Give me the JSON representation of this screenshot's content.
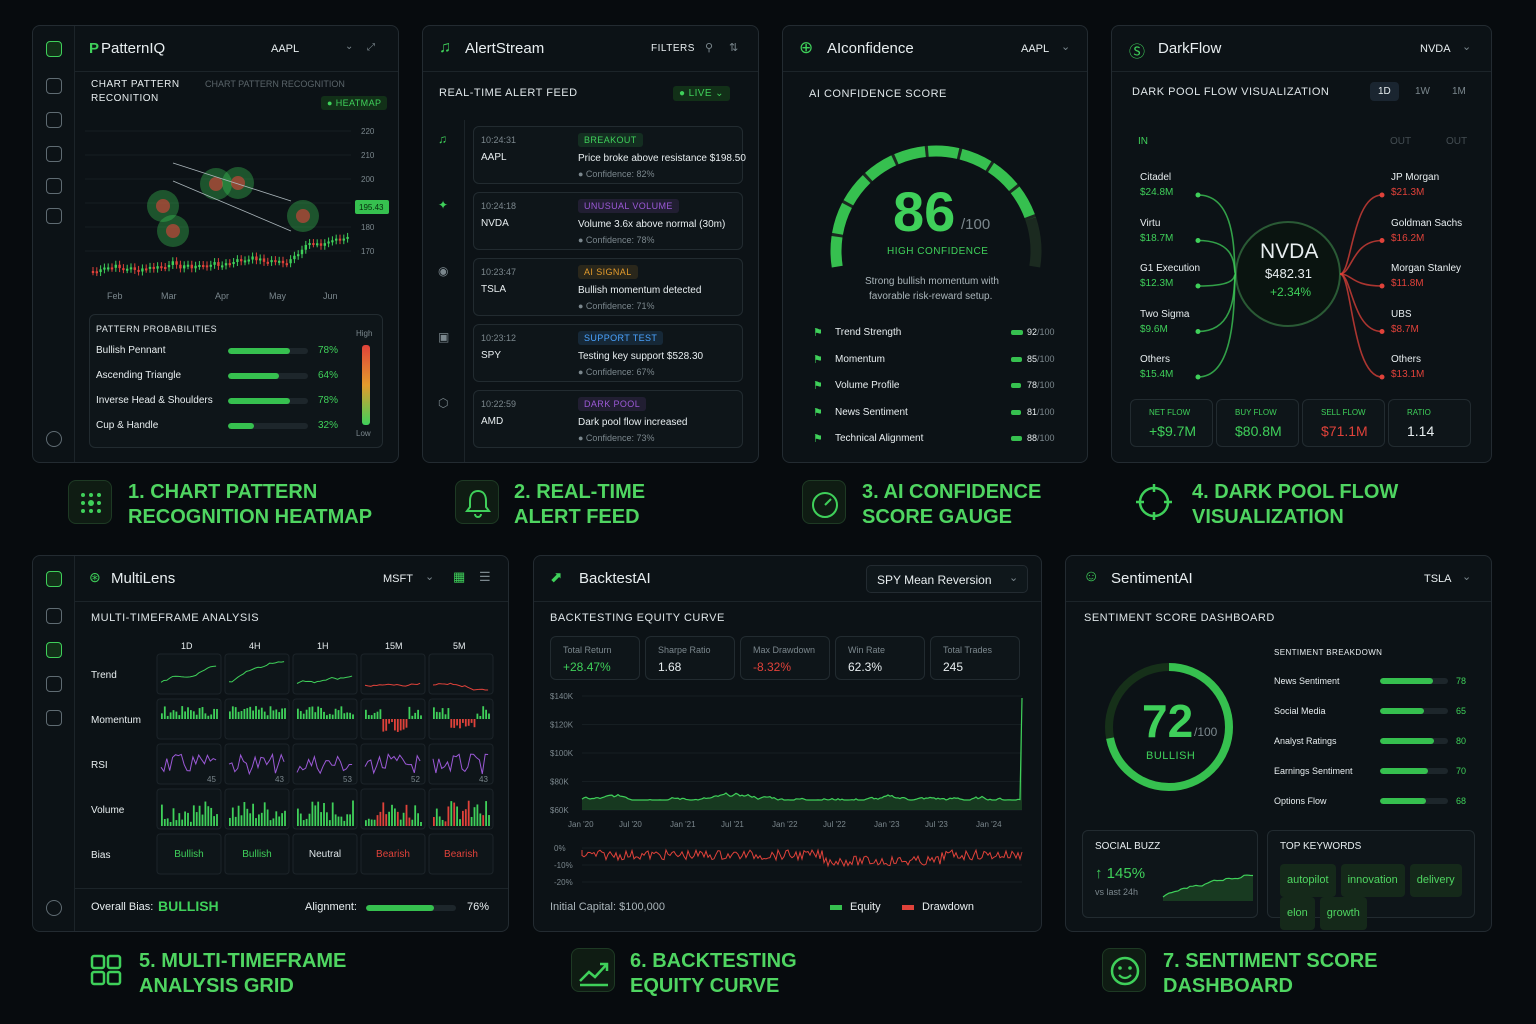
{
  "colors": {
    "accent": "#3fd05a",
    "danger": "#e0423a",
    "panel": "#0c1216",
    "bg": "#070b0e",
    "purple": "#9b59d6",
    "blue": "#4aa3ff",
    "orange": "#e39b2c"
  },
  "pattern": {
    "app": "PatternIQ",
    "ticker": "AAPL",
    "title_line1": "CHART PATTERN",
    "title_line2": "RECONITION",
    "title_ghost": "CHART PATTERN RECOGNITION",
    "heatmap_badge": "HEATMAP",
    "y_ticks": [
      "220",
      "210",
      "200",
      "190",
      "180",
      "170"
    ],
    "price_tag": "195.43",
    "x_ticks": [
      "Feb",
      "Mar",
      "Apr",
      "May",
      "Jun"
    ],
    "prob_title": "PATTERN PROBABILITIES",
    "scale_high": "High",
    "scale_low": "Low",
    "probs": [
      {
        "name": "Bullish Pennant",
        "value": 78,
        "label": "78%"
      },
      {
        "name": "Ascending Triangle",
        "value": 64,
        "label": "64%"
      },
      {
        "name": "Inverse Head & Shoulders",
        "value": 78,
        "label": "78%"
      },
      {
        "name": "Cup & Handle",
        "value": 32,
        "label": "32%"
      }
    ]
  },
  "alert": {
    "app": "AlertStream",
    "filters": "FILTERS",
    "title": "REAL-TIME ALERT FEED",
    "live": "LIVE",
    "items": [
      {
        "time": "10:24:31",
        "sym": "AAPL",
        "badge": "BREAKOUT",
        "badge_color": "#3fd05a",
        "msg": "Price broke above resistance $198.50",
        "conf": "Confidence: 82%"
      },
      {
        "time": "10:24:18",
        "sym": "NVDA",
        "badge": "UNUSUAL VOLUME",
        "badge_color": "#9b59d6",
        "msg": "Volume 3.6x above normal (30m)",
        "conf": "Confidence: 78%"
      },
      {
        "time": "10:23:47",
        "sym": "TSLA",
        "badge": "AI SIGNAL",
        "badge_color": "#e39b2c",
        "msg": "Bullish momentum detected",
        "conf": "Confidence: 71%"
      },
      {
        "time": "10:23:12",
        "sym": "SPY",
        "badge": "SUPPORT TEST",
        "badge_color": "#4aa3ff",
        "msg": "Testing key support $528.30",
        "conf": "Confidence: 67%"
      },
      {
        "time": "10:22:59",
        "sym": "AMD",
        "badge": "DARK POOL",
        "badge_color": "#9b59d6",
        "msg": "Dark pool flow increased",
        "conf": "Confidence: 73%"
      }
    ]
  },
  "confidence": {
    "app": "AIconfidence",
    "ticker": "AAPL",
    "title": "AI CONFIDENCE SCORE",
    "score": "86",
    "score_value": 86,
    "max": "/100",
    "level": "HIGH CONFIDENCE",
    "desc1": "Strong bullish momentum with",
    "desc2": "favorable risk-reward setup.",
    "factors": [
      {
        "name": "Trend Strength",
        "value": 92,
        "label": "92"
      },
      {
        "name": "Momentum",
        "value": 85,
        "label": "85"
      },
      {
        "name": "Volume Profile",
        "value": 78,
        "label": "78"
      },
      {
        "name": "News Sentiment",
        "value": 81,
        "label": "81"
      },
      {
        "name": "Technical Alignment",
        "value": 88,
        "label": "88"
      }
    ],
    "factor_max": "/100"
  },
  "darkflow": {
    "app": "DarkFlow",
    "ticker": "NVDA",
    "title": "DARK POOL FLOW VISUALIZATION",
    "tabs": [
      "1D",
      "1W",
      "1M"
    ],
    "in_label": "IN",
    "out_label1": "OUT",
    "out_label2": "OUT",
    "center": {
      "sym": "NVDA",
      "price": "$482.31",
      "change": "+2.34%"
    },
    "inflows": [
      {
        "name": "Citadel",
        "value": "$24.8M"
      },
      {
        "name": "Virtu",
        "value": "$18.7M"
      },
      {
        "name": "G1 Execution",
        "value": "$12.3M"
      },
      {
        "name": "Two Sigma",
        "value": "$9.6M"
      },
      {
        "name": "Others",
        "value": "$15.4M"
      }
    ],
    "outflows": [
      {
        "name": "JP Morgan",
        "value": "$21.3M"
      },
      {
        "name": "Goldman Sachs",
        "value": "$16.2M"
      },
      {
        "name": "Morgan Stanley",
        "value": "$11.8M"
      },
      {
        "name": "UBS",
        "value": "$8.7M"
      },
      {
        "name": "Others",
        "value": "$13.1M"
      }
    ],
    "stats": [
      {
        "label": "NET FLOW",
        "value": "+$9.7M"
      },
      {
        "label": "BUY FLOW",
        "value": "$80.8M"
      },
      {
        "label": "SELL FLOW",
        "value": "$71.1M"
      },
      {
        "label": "RATIO",
        "value": "1.14"
      }
    ]
  },
  "multilens": {
    "app": "MultiLens",
    "ticker": "MSFT",
    "title": "MULTI-TIMEFRAME ANALYSIS",
    "timeframes": [
      "1D",
      "4H",
      "1H",
      "15M",
      "5M"
    ],
    "rows": [
      "Trend",
      "Momentum",
      "RSI",
      "Volume",
      "Bias"
    ],
    "rsi": [
      "45",
      "43",
      "53",
      "52",
      "43"
    ],
    "bias": [
      "Bullish",
      "Bullish",
      "Neutral",
      "Bearish",
      "Bearish"
    ],
    "overall_label": "Overall Bias:",
    "overall": "BULLISH",
    "alignment_label": "Alignment:",
    "alignment": "76%",
    "alignment_value": 76
  },
  "backtest": {
    "app": "BacktestAI",
    "strategy": "SPY Mean Reversion",
    "title": "BACKTESTING EQUITY CURVE",
    "stats": [
      {
        "label": "Total Return",
        "value": "+28.47%"
      },
      {
        "label": "Sharpe Ratio",
        "value": "1.68"
      },
      {
        "label": "Max Drawdown",
        "value": "-8.32%"
      },
      {
        "label": "Win Rate",
        "value": "62.3%"
      },
      {
        "label": "Total Trades",
        "value": "245"
      }
    ],
    "y_ticks": [
      "$140K",
      "$120K",
      "$100K",
      "$80K",
      "$60K"
    ],
    "x_ticks": [
      "Jan '20",
      "Jul '20",
      "Jan '21",
      "Jul '21",
      "Jan '22",
      "Jul '22",
      "Jan '23",
      "Jul '23",
      "Jan '24"
    ],
    "dd_ticks": [
      "0%",
      "-10%",
      "-20%"
    ],
    "capital": "Initial Capital: $100,000",
    "legend_equity": "Equity",
    "legend_drawdown": "Drawdown"
  },
  "sentiment": {
    "app": "SentimentAI",
    "ticker": "TSLA",
    "title": "SENTIMENT SCORE DASHBOARD",
    "score": "72",
    "score_value": 72,
    "max": "/100",
    "label": "BULLISH",
    "breakdown_title": "SENTIMENT BREAKDOWN",
    "breakdown": [
      {
        "name": "News Sentiment",
        "value": 78,
        "label": "78"
      },
      {
        "name": "Social Media",
        "value": 65,
        "label": "65"
      },
      {
        "name": "Analyst Ratings",
        "value": 80,
        "label": "80"
      },
      {
        "name": "Earnings Sentiment",
        "value": 70,
        "label": "70"
      },
      {
        "name": "Options Flow",
        "value": 68,
        "label": "68"
      }
    ],
    "buzz_title": "SOCIAL BUZZ",
    "buzz": "↑ 145%",
    "buzz_sub": "vs last 24h",
    "kw_title": "TOP KEYWORDS",
    "keywords": [
      "autopilot",
      "innovation",
      "delivery",
      "elon",
      "growth"
    ]
  },
  "captions": [
    "1. CHART PATTERN\nRECOGNITION HEATMAP",
    "2. REAL-TIME\nALERT FEED",
    "3. AI CONFIDENCE\nSCORE GAUGE",
    "4. DARK POOL FLOW\nVISUALIZATION",
    "5. MULTI-TIMEFRAME\nANALYSIS GRID",
    "6. BACKTESTING\nEQUITY CURVE",
    "7. SENTIMENT SCORE\nDASHBOARD"
  ]
}
